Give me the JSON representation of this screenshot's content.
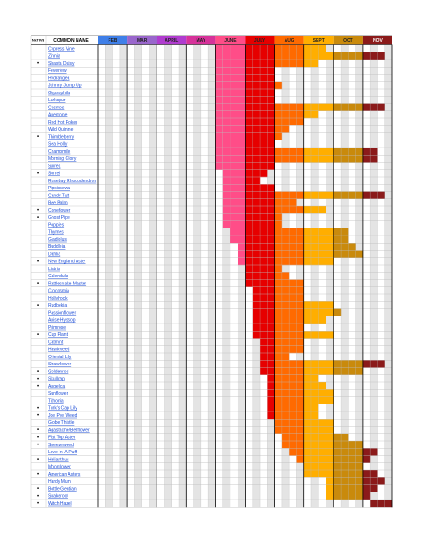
{
  "table": {
    "native_header": "NATIVE",
    "name_header": "COMMON NAME",
    "native_mark": "•",
    "months": [
      {
        "label": "FEB",
        "color": "#3f7fe8"
      },
      {
        "label": "MAR",
        "color": "#9966cc"
      },
      {
        "label": "APRIL",
        "color": "#b03ccf"
      },
      {
        "label": "MAY",
        "color": "#d6329a"
      },
      {
        "label": "JUNE",
        "color": "#ff4d88"
      },
      {
        "label": "JULY",
        "color": "#e60000"
      },
      {
        "label": "AUG",
        "color": "#ff6a00"
      },
      {
        "label": "SEPT",
        "color": "#ffae00"
      },
      {
        "label": "OCT",
        "color": "#c98a0c"
      },
      {
        "label": "NOV",
        "color": "#8b1a1a"
      }
    ],
    "rows": [
      {
        "name": "Cypress Vine",
        "native": false,
        "bloom": [
          16,
          31
        ]
      },
      {
        "name": "Zinnia",
        "native": false,
        "bloom": [
          16,
          39
        ]
      },
      {
        "name": "Shasta Daisy",
        "native": true,
        "bloom": [
          16,
          30
        ]
      },
      {
        "name": "Feverfew",
        "native": false,
        "bloom": [
          16,
          24
        ]
      },
      {
        "name": "Hydrangea",
        "native": false,
        "bloom": [
          16,
          24
        ]
      },
      {
        "name": "Johnny Jump Up",
        "native": false,
        "bloom": [
          16,
          25
        ]
      },
      {
        "name": "Gypsophila",
        "native": false,
        "bloom": [
          16,
          24
        ]
      },
      {
        "name": "Larkspur",
        "native": false,
        "bloom": [
          16,
          24
        ]
      },
      {
        "name": "Cosmos",
        "native": false,
        "bloom": [
          16,
          39
        ]
      },
      {
        "name": "Anemone",
        "native": false,
        "bloom": [
          16,
          30
        ]
      },
      {
        "name": "Red Hot Poker",
        "native": false,
        "bloom": [
          16,
          28
        ]
      },
      {
        "name": "Wild Quinine",
        "native": false,
        "bloom": [
          16,
          26
        ]
      },
      {
        "name": "Thimbleberry",
        "native": true,
        "bloom": [
          16,
          25
        ]
      },
      {
        "name": "Sea Holly",
        "native": false,
        "bloom": [
          16,
          24
        ]
      },
      {
        "name": "Chamomile",
        "native": false,
        "bloom": [
          16,
          38
        ]
      },
      {
        "name": "Morning Glory",
        "native": false,
        "bloom": [
          16,
          38
        ]
      },
      {
        "name": "Spirea",
        "native": false,
        "bloom": [
          16,
          24
        ]
      },
      {
        "name": "Sorrel",
        "native": true,
        "bloom": [
          17,
          23
        ]
      },
      {
        "name": "Rosebay Rhododendron",
        "native": false,
        "bloom": [
          17,
          22
        ]
      },
      {
        "name": "Pipsissewa",
        "native": false,
        "bloom": [
          17,
          24
        ]
      },
      {
        "name": "Candy Tuft",
        "native": false,
        "bloom": [
          17,
          39
        ]
      },
      {
        "name": "Bee Balm",
        "native": false,
        "bloom": [
          17,
          27
        ]
      },
      {
        "name": "Coneflower",
        "native": true,
        "bloom": [
          17,
          31
        ]
      },
      {
        "name": "Ghost Pipe",
        "native": true,
        "bloom": [
          17,
          25
        ]
      },
      {
        "name": "Poppies",
        "native": false,
        "bloom": [
          17,
          25
        ]
      },
      {
        "name": "Thymes",
        "native": false,
        "bloom": [
          18,
          34
        ]
      },
      {
        "name": "Gladiolus",
        "native": false,
        "bloom": [
          18,
          34
        ]
      },
      {
        "name": "Buddleia",
        "native": false,
        "bloom": [
          19,
          35
        ]
      },
      {
        "name": "Dahlia",
        "native": false,
        "bloom": [
          19,
          36
        ]
      },
      {
        "name": "New England Aster",
        "native": true,
        "bloom": [
          19,
          32
        ]
      },
      {
        "name": "Liatris",
        "native": false,
        "bloom": [
          20,
          25
        ]
      },
      {
        "name": "Calendula",
        "native": false,
        "bloom": [
          20,
          26
        ]
      },
      {
        "name": "Rattlesnake Master",
        "native": true,
        "bloom": [
          20,
          28
        ]
      },
      {
        "name": "Crocosmia",
        "native": false,
        "bloom": [
          21,
          28
        ]
      },
      {
        "name": "Hollyhock",
        "native": false,
        "bloom": [
          21,
          28
        ]
      },
      {
        "name": "Rudbekia",
        "native": true,
        "bloom": [
          21,
          32
        ]
      },
      {
        "name": "Passionflower",
        "native": false,
        "bloom": [
          21,
          33
        ]
      },
      {
        "name": "Anise Hyssop",
        "native": false,
        "bloom": [
          21,
          31
        ]
      },
      {
        "name": "Primrose",
        "native": false,
        "bloom": [
          21,
          28
        ]
      },
      {
        "name": "Cup Plant",
        "native": true,
        "bloom": [
          21,
          32
        ]
      },
      {
        "name": "Catmint",
        "native": false,
        "bloom": [
          22,
          28
        ]
      },
      {
        "name": "Hawkweed",
        "native": false,
        "bloom": [
          22,
          28
        ]
      },
      {
        "name": "Oriental Lily",
        "native": false,
        "bloom": [
          22,
          26
        ]
      },
      {
        "name": "Strawflower",
        "native": false,
        "bloom": [
          22,
          39
        ]
      },
      {
        "name": "Goldenrod",
        "native": true,
        "bloom": [
          22,
          36
        ]
      },
      {
        "name": "Skullcap",
        "native": true,
        "bloom": [
          23,
          30
        ]
      },
      {
        "name": "Angelica",
        "native": true,
        "bloom": [
          23,
          31
        ]
      },
      {
        "name": "Sunflower",
        "native": false,
        "bloom": [
          23,
          32
        ]
      },
      {
        "name": "Tithonia",
        "native": false,
        "bloom": [
          23,
          32
        ]
      },
      {
        "name": "Turk's Cap Lily",
        "native": true,
        "bloom": [
          23,
          30
        ]
      },
      {
        "name": "Joe Pye Weed",
        "native": true,
        "bloom": [
          23,
          30
        ]
      },
      {
        "name": "Globe Thistle",
        "native": false,
        "bloom": [
          24,
          32
        ]
      },
      {
        "name": "Agastache/Bellflower",
        "native": true,
        "bloom": [
          24,
          32
        ]
      },
      {
        "name": "Flat Top Aster",
        "native": true,
        "bloom": [
          25,
          34
        ]
      },
      {
        "name": "Sneezeweed",
        "native": true,
        "bloom": [
          25,
          36
        ]
      },
      {
        "name": "Love-In-A-Puff",
        "native": false,
        "bloom": [
          26,
          38
        ]
      },
      {
        "name": "Helianthus",
        "native": true,
        "bloom": [
          27,
          37
        ]
      },
      {
        "name": "Moonflower",
        "native": false,
        "bloom": [
          28,
          36
        ]
      },
      {
        "name": "American Asters",
        "native": true,
        "bloom": [
          28,
          38
        ]
      },
      {
        "name": "Hardy Mum",
        "native": false,
        "bloom": [
          31,
          39
        ]
      },
      {
        "name": "Bottle Gentian",
        "native": true,
        "bloom": [
          31,
          38
        ]
      },
      {
        "name": "Snakeroot",
        "native": true,
        "bloom": [
          31,
          37
        ]
      },
      {
        "name": "Witch Hazel",
        "native": true,
        "bloom": [
          37,
          40
        ]
      }
    ]
  }
}
